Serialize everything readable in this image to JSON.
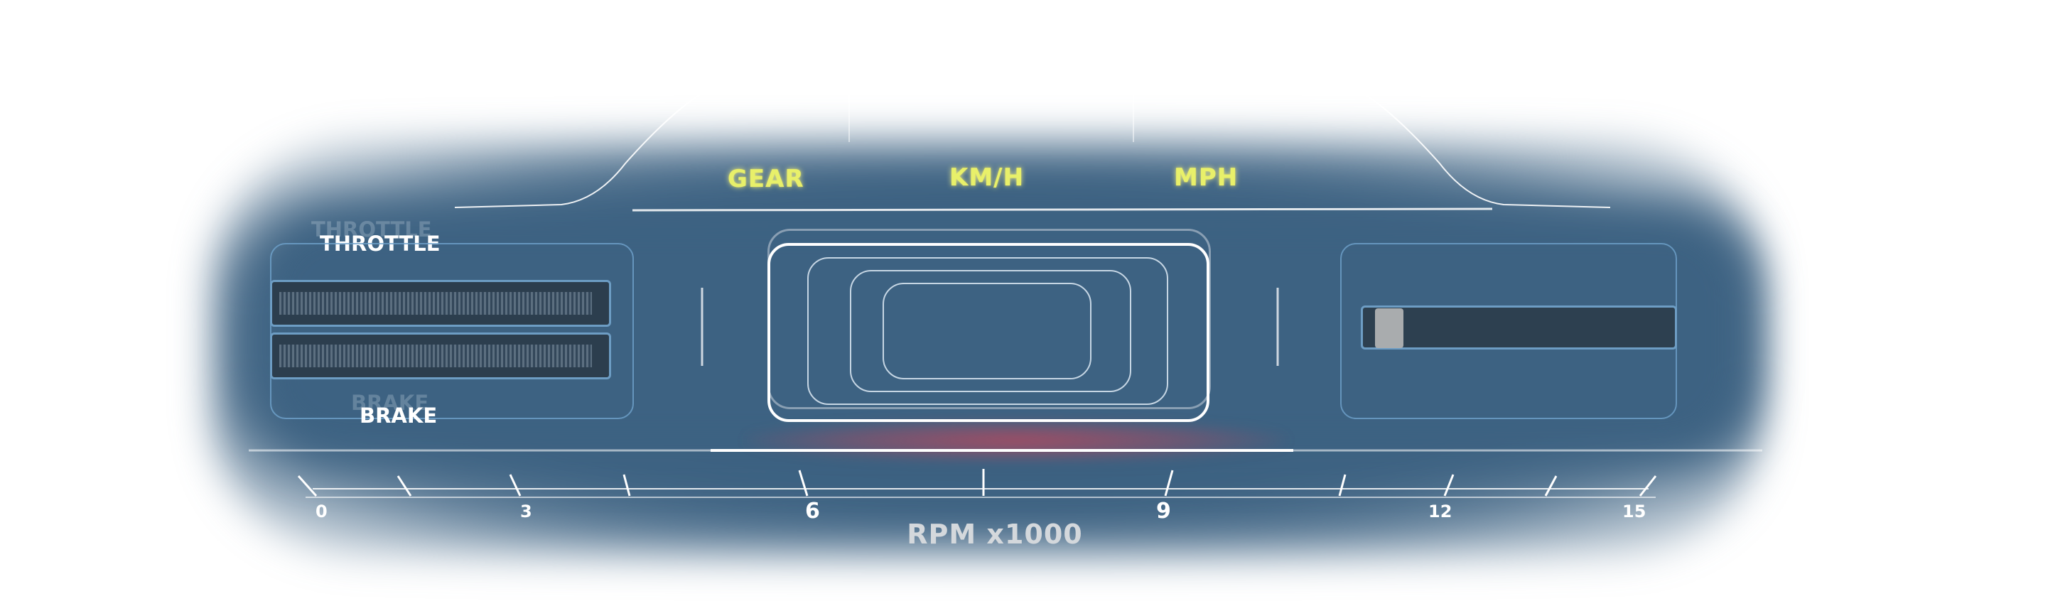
{
  "labels": {
    "gear": "GEAR",
    "speed_kmh": "KM/H",
    "speed_mph": "MPH",
    "throttle": "THROTTLE",
    "brake": "BRAKE",
    "throttle_ghost": "THROTTLE",
    "brake_ghost": "BRAKE"
  },
  "rpm": {
    "label": "RPM x1000",
    "tick_labels": [
      "0",
      "3",
      "6",
      "9",
      "12",
      "15"
    ]
  },
  "colors": {
    "panel": "#3d6282",
    "accent_yellow": "#e8f06a",
    "outline_blue": "#6fa3cc",
    "bar_dark": "#2c3e4e",
    "rpm_glow": "#c4465a"
  },
  "icons": {
    "speed_display": "nested-rounded-rect-frame",
    "slider": "horizontal-slider"
  }
}
